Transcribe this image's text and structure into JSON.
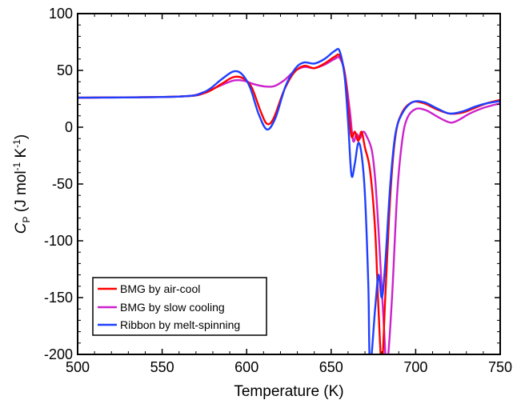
{
  "chart_data": {
    "type": "line",
    "xlabel": "Temperature (K)",
    "ylabel": {
      "symbol": "C",
      "subscript": "P",
      "units_prefix": " (J mol",
      "sup1": "-1",
      "units_mid": " K",
      "sup2": "-1",
      "units_suffix": ")"
    },
    "xlim": [
      500,
      750
    ],
    "ylim": [
      -200,
      100
    ],
    "xticks": [
      500,
      550,
      600,
      650,
      700,
      750
    ],
    "yticks": [
      100,
      50,
      0,
      -50,
      -100,
      -150,
      -200
    ],
    "grid": false,
    "legend_position": "bottom-left",
    "series": [
      {
        "name": "BMG by air-cool",
        "color": "#ff0000",
        "points": [
          [
            500,
            26
          ],
          [
            560,
            27
          ],
          [
            575,
            30
          ],
          [
            585,
            38
          ],
          [
            592,
            44
          ],
          [
            598,
            43
          ],
          [
            603,
            35
          ],
          [
            608,
            15
          ],
          [
            612,
            3
          ],
          [
            616,
            8
          ],
          [
            622,
            32
          ],
          [
            628,
            48
          ],
          [
            634,
            54
          ],
          [
            640,
            52
          ],
          [
            646,
            56
          ],
          [
            652,
            62
          ],
          [
            655,
            63
          ],
          [
            658,
            48
          ],
          [
            660,
            18
          ],
          [
            662,
            -8
          ],
          [
            664,
            -4
          ],
          [
            666,
            -12
          ],
          [
            668,
            -4
          ],
          [
            670,
            -18
          ],
          [
            673,
            -38
          ],
          [
            676,
            -90
          ],
          [
            678,
            -160
          ],
          [
            680,
            -210
          ],
          [
            682,
            -150
          ],
          [
            685,
            -60
          ],
          [
            688,
            -8
          ],
          [
            692,
            13
          ],
          [
            698,
            22
          ],
          [
            705,
            21
          ],
          [
            712,
            16
          ],
          [
            720,
            12
          ],
          [
            728,
            13
          ],
          [
            735,
            17
          ],
          [
            742,
            21
          ],
          [
            750,
            24
          ]
        ]
      },
      {
        "name": "BMG by slow cooling",
        "color": "#cc22cc",
        "points": [
          [
            500,
            26
          ],
          [
            560,
            27
          ],
          [
            575,
            31
          ],
          [
            585,
            37
          ],
          [
            592,
            41
          ],
          [
            598,
            41
          ],
          [
            604,
            38
          ],
          [
            610,
            36
          ],
          [
            616,
            36
          ],
          [
            622,
            41
          ],
          [
            628,
            49
          ],
          [
            634,
            53
          ],
          [
            640,
            52
          ],
          [
            646,
            55
          ],
          [
            652,
            60
          ],
          [
            655,
            61
          ],
          [
            658,
            48
          ],
          [
            661,
            15
          ],
          [
            663,
            -12
          ],
          [
            665,
            -6
          ],
          [
            667,
            -10
          ],
          [
            669,
            -4
          ],
          [
            671,
            -8
          ],
          [
            674,
            -20
          ],
          [
            676,
            -45
          ],
          [
            678,
            -90
          ],
          [
            681,
            -170
          ],
          [
            683,
            -210
          ],
          [
            686,
            -150
          ],
          [
            689,
            -60
          ],
          [
            692,
            -12
          ],
          [
            695,
            8
          ],
          [
            700,
            16
          ],
          [
            706,
            15
          ],
          [
            712,
            10
          ],
          [
            717,
            6
          ],
          [
            721,
            4
          ],
          [
            725,
            6
          ],
          [
            732,
            12
          ],
          [
            740,
            17
          ],
          [
            750,
            21
          ]
        ]
      },
      {
        "name": "Ribbon by melt-spinning",
        "color": "#1f3fff",
        "points": [
          [
            500,
            26
          ],
          [
            560,
            27
          ],
          [
            575,
            31
          ],
          [
            585,
            42
          ],
          [
            592,
            49
          ],
          [
            597,
            47
          ],
          [
            602,
            35
          ],
          [
            607,
            12
          ],
          [
            612,
            -2
          ],
          [
            617,
            8
          ],
          [
            623,
            36
          ],
          [
            629,
            52
          ],
          [
            634,
            57
          ],
          [
            640,
            56
          ],
          [
            646,
            60
          ],
          [
            652,
            67
          ],
          [
            655,
            67
          ],
          [
            658,
            44
          ],
          [
            660,
            5
          ],
          [
            662,
            -42
          ],
          [
            664,
            -32
          ],
          [
            666,
            -14
          ],
          [
            668,
            -24
          ],
          [
            670,
            -60
          ],
          [
            672,
            -140
          ],
          [
            673,
            -210
          ],
          [
            676,
            -160
          ],
          [
            678,
            -130
          ],
          [
            680,
            -150
          ],
          [
            682,
            -120
          ],
          [
            685,
            -50
          ],
          [
            688,
            -6
          ],
          [
            692,
            12
          ],
          [
            698,
            22
          ],
          [
            705,
            22
          ],
          [
            712,
            17
          ],
          [
            720,
            12
          ],
          [
            728,
            14
          ],
          [
            735,
            18
          ],
          [
            742,
            21
          ],
          [
            750,
            23
          ]
        ]
      }
    ]
  }
}
